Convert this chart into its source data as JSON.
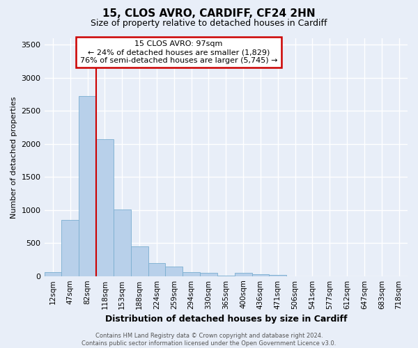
{
  "title_line1": "15, CLOS AVRO, CARDIFF, CF24 2HN",
  "title_line2": "Size of property relative to detached houses in Cardiff",
  "xlabel": "Distribution of detached houses by size in Cardiff",
  "ylabel": "Number of detached properties",
  "bar_color": "#b8d0ea",
  "bar_edge_color": "#7aaed0",
  "background_color": "#e8eef8",
  "plot_bg_color": "#e8eef8",
  "grid_color": "#ffffff",
  "categories": [
    "12sqm",
    "47sqm",
    "82sqm",
    "118sqm",
    "153sqm",
    "188sqm",
    "224sqm",
    "259sqm",
    "294sqm",
    "330sqm",
    "365sqm",
    "400sqm",
    "436sqm",
    "471sqm",
    "506sqm",
    "541sqm",
    "577sqm",
    "612sqm",
    "647sqm",
    "683sqm",
    "718sqm"
  ],
  "values": [
    55,
    850,
    2730,
    2070,
    1010,
    450,
    200,
    140,
    65,
    50,
    5,
    50,
    30,
    20,
    0,
    0,
    0,
    0,
    0,
    0,
    0
  ],
  "ylim": [
    0,
    3600
  ],
  "yticks": [
    0,
    500,
    1000,
    1500,
    2000,
    2500,
    3000,
    3500
  ],
  "vline_pos": 2.5,
  "vline_color": "#cc0000",
  "annotation_title": "15 CLOS AVRO: 97sqm",
  "annotation_line1": "← 24% of detached houses are smaller (1,829)",
  "annotation_line2": "76% of semi-detached houses are larger (5,745) →",
  "annotation_box_facecolor": "#ffffff",
  "annotation_box_edgecolor": "#cc0000",
  "footer_line1": "Contains HM Land Registry data © Crown copyright and database right 2024.",
  "footer_line2": "Contains public sector information licensed under the Open Government Licence v3.0.",
  "title1_fontsize": 11,
  "title2_fontsize": 9,
  "ylabel_fontsize": 8,
  "xlabel_fontsize": 9,
  "tick_fontsize": 8,
  "annot_fontsize": 8,
  "footer_fontsize": 6
}
